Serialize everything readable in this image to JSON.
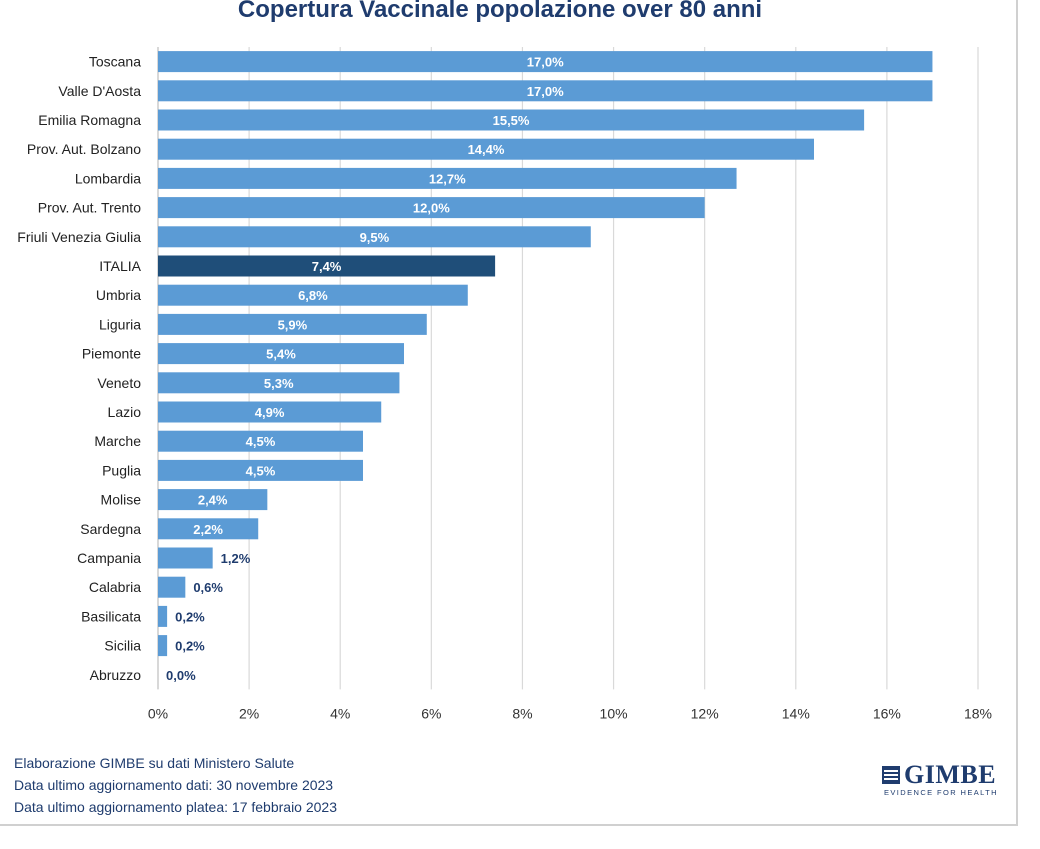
{
  "chart_data": {
    "type": "bar",
    "orientation": "horizontal",
    "title": "Copertura Vaccinale popolazione over 80 anni",
    "categories": [
      "Toscana",
      "Valle D'Aosta",
      "Emilia Romagna",
      "Prov. Aut. Bolzano",
      "Lombardia",
      "Prov. Aut. Trento",
      "Friuli Venezia Giulia",
      "ITALIA",
      "Umbria",
      "Liguria",
      "Piemonte",
      "Veneto",
      "Lazio",
      "Marche",
      "Puglia",
      "Molise",
      "Sardegna",
      "Campania",
      "Calabria",
      "Basilicata",
      "Sicilia",
      "Abruzzo"
    ],
    "values": [
      17.0,
      17.0,
      15.5,
      14.4,
      12.7,
      12.0,
      9.5,
      7.4,
      6.8,
      5.9,
      5.4,
      5.3,
      4.9,
      4.5,
      4.5,
      2.4,
      2.2,
      1.2,
      0.6,
      0.2,
      0.2,
      0.0
    ],
    "data_labels": [
      "17,0%",
      "17,0%",
      "15,5%",
      "14,4%",
      "12,7%",
      "12,0%",
      "9,5%",
      "7,4%",
      "6,8%",
      "5,9%",
      "5,4%",
      "5,3%",
      "4,9%",
      "4,5%",
      "4,5%",
      "2,4%",
      "2,2%",
      "1,2%",
      "0,6%",
      "0,2%",
      "0,2%",
      "0,0%"
    ],
    "highlight": "ITALIA",
    "xlim": [
      0,
      18
    ],
    "xticks": [
      "0%",
      "2%",
      "4%",
      "6%",
      "8%",
      "10%",
      "12%",
      "14%",
      "16%",
      "18%"
    ],
    "grid": true,
    "bar_color": "#5b9bd5",
    "highlight_color": "#1f4e79",
    "outside_label_color": "#1f3c6e"
  },
  "footer": {
    "source_line": "Elaborazione GIMBE su dati Ministero Salute",
    "data_update": "Data ultimo aggiornamento dati: 30 novembre 2023",
    "platea_update": "Data ultimo aggiornamento platea: 17 febbraio 2023"
  },
  "logo": {
    "name": "GIMBE",
    "tagline": "EVIDENCE FOR HEALTH",
    "icon": "gimbe-logo-icon"
  }
}
